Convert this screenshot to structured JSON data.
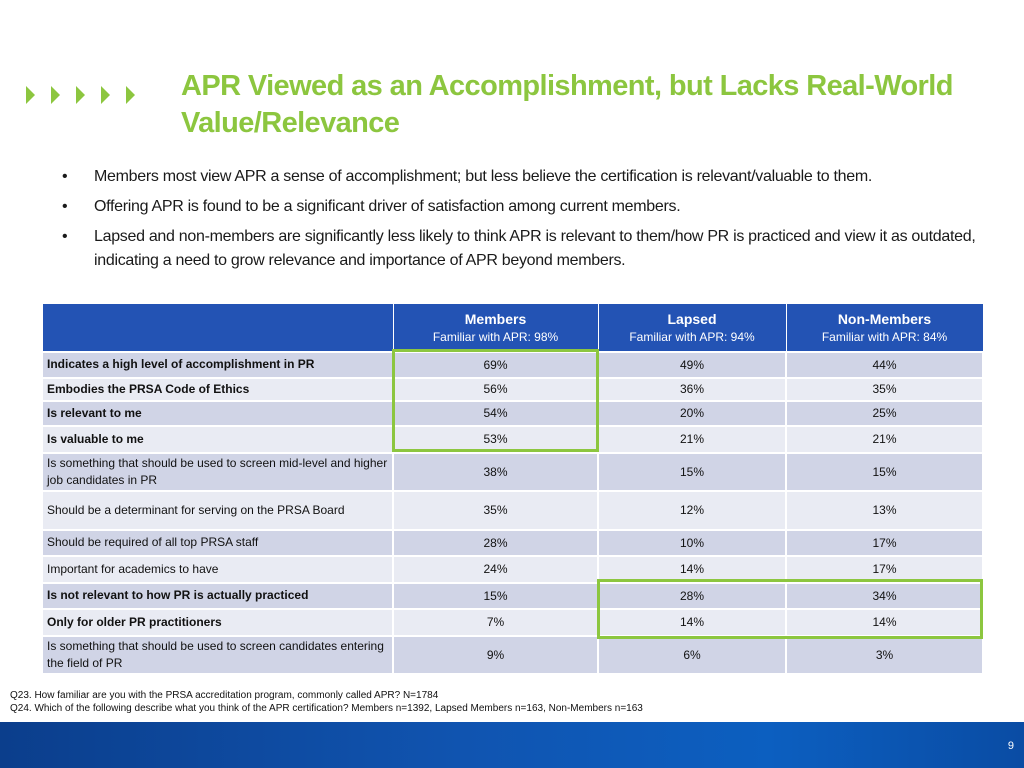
{
  "title": "APR Viewed as an Accomplishment, but Lacks Real-World Value/Relevance",
  "bullets": [
    "Members most view APR a sense of accomplishment; but less believe the certification is relevant/valuable to them.",
    "Offering APR is found to be a significant driver of satisfaction among current members.",
    "Lapsed and non-members are significantly less likely to think APR is relevant to them/how PR is practiced and view it as outdated, indicating a need to grow relevance and importance of APR beyond members."
  ],
  "bullet_symbol": "•",
  "table": {
    "headers": [
      {
        "label": "",
        "sub": ""
      },
      {
        "label": "Members",
        "sub": "Familiar with APR: 98%"
      },
      {
        "label": "Lapsed",
        "sub": "Familiar with APR: 94%"
      },
      {
        "label": "Non-Members",
        "sub": "Familiar with APR: 84%"
      }
    ],
    "rows": [
      {
        "label": "Indicates a high level of accomplishment in PR",
        "bold": true,
        "values": [
          "69%",
          "49%",
          "44%"
        ]
      },
      {
        "label": "Embodies the PRSA Code of Ethics",
        "bold": true,
        "values": [
          "56%",
          "36%",
          "35%"
        ]
      },
      {
        "label": "Is relevant to me",
        "bold": true,
        "values": [
          "54%",
          "20%",
          "25%"
        ]
      },
      {
        "label": "Is valuable to me",
        "bold": true,
        "values": [
          "53%",
          "21%",
          "21%"
        ]
      },
      {
        "label": "Is something that should be used to screen mid-level and higher job candidates in PR",
        "bold": false,
        "values": [
          "38%",
          "15%",
          "15%"
        ]
      },
      {
        "label": "Should be a determinant for serving on the PRSA Board",
        "bold": false,
        "values": [
          "35%",
          "12%",
          "13%"
        ]
      },
      {
        "label": "Should be required of all top PRSA staff",
        "bold": false,
        "values": [
          "28%",
          "10%",
          "17%"
        ]
      },
      {
        "label": "Important for academics to have",
        "bold": false,
        "values": [
          "24%",
          "14%",
          "17%"
        ]
      },
      {
        "label": "Is not relevant to how PR is actually practiced",
        "bold": true,
        "values": [
          "15%",
          "28%",
          "34%"
        ]
      },
      {
        "label": "Only for older PR practitioners",
        "bold": true,
        "values": [
          "7%",
          "14%",
          "14%"
        ]
      },
      {
        "label": "Is something that should be used to screen candidates entering the field of PR",
        "bold": false,
        "values": [
          "9%",
          "6%",
          "3%"
        ]
      }
    ]
  },
  "notes": [
    "Q23. How familiar are you with the PRSA accreditation program, commonly called APR? N=1784",
    "Q24. Which of the following describe what you think of the APR certification? Members n=1392, Lapsed Members n=163, Non-Members n=163"
  ],
  "page_number": "9",
  "colors": {
    "accent_green": "#8cc63f",
    "header_blue": "#2353b4",
    "row_dark": "#d0d4e6",
    "row_light": "#e9ebf3",
    "footer_blue": "#0c5fc0"
  },
  "icons": {
    "chevrons": "green-chevron-icon"
  }
}
